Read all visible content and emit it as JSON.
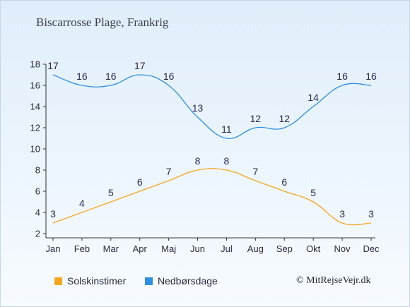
{
  "chart_data": {
    "type": "line",
    "title": "Biscarrosse Plage, Frankrig",
    "categories": [
      "Jan",
      "Feb",
      "Mar",
      "Apr",
      "Maj",
      "Jun",
      "Jul",
      "Aug",
      "Sep",
      "Okt",
      "Nov",
      "Dec"
    ],
    "yticks": [
      2,
      4,
      6,
      8,
      10,
      12,
      14,
      16,
      18
    ],
    "ylim": [
      2,
      18
    ],
    "series": [
      {
        "name": "Solskinstimer",
        "color": "#f5a623",
        "values": [
          3,
          4,
          5,
          6,
          7,
          8,
          8,
          7,
          6,
          5,
          3,
          3
        ]
      },
      {
        "name": "Nedbørsdage",
        "color": "#2f8fdf",
        "values": [
          17,
          16,
          16,
          17,
          16,
          13,
          11,
          12,
          12,
          14,
          16,
          16
        ]
      }
    ],
    "legend_position": "bottom-left",
    "grid": false
  },
  "credit": "© MitRejseVejr.dk"
}
